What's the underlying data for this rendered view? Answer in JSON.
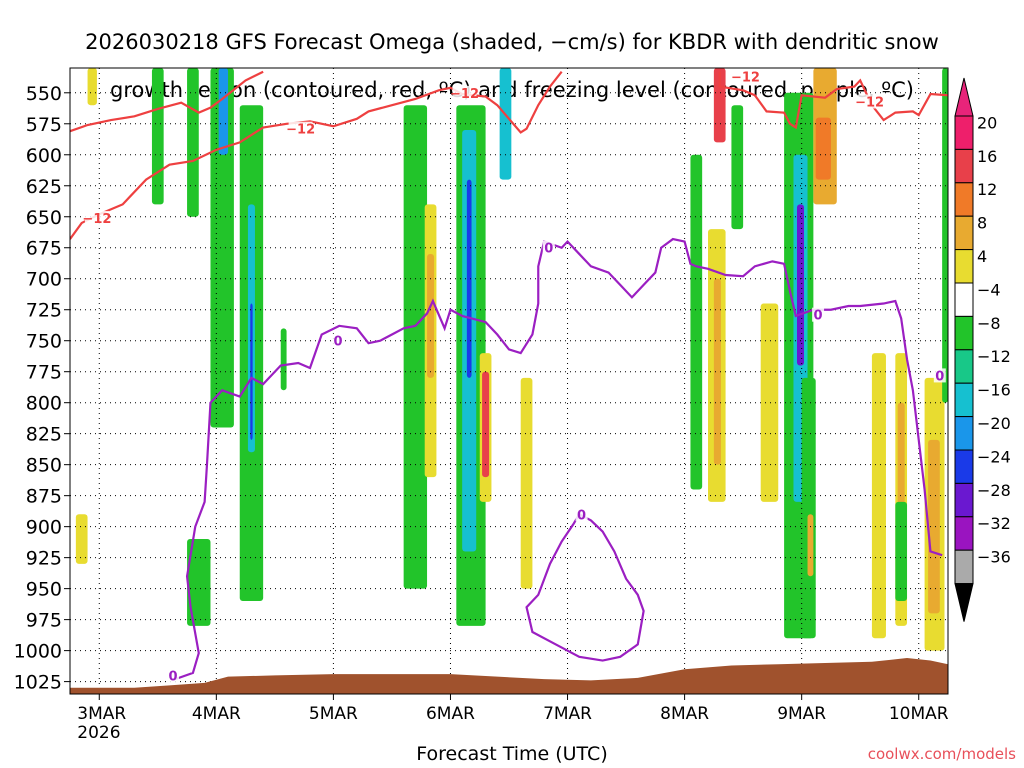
{
  "title_lines": [
    "2026030218 GFS Forecast Omega (shaded, −cm/s) for KBDR with dendritic snow",
    "growth region (contoured, red, ºC) and freezing level (contoured, purple, ºC)"
  ],
  "credit": "coolwx.com/models",
  "chart_data": {
    "type": "heatmap",
    "xlabel": "Forecast Time (UTC)",
    "x_ticks": [
      {
        "label": "3MAR",
        "sub": "2026",
        "day": 0
      },
      {
        "label": "4MAR",
        "day": 1
      },
      {
        "label": "5MAR",
        "day": 2
      },
      {
        "label": "6MAR",
        "day": 3
      },
      {
        "label": "7MAR",
        "day": 4
      },
      {
        "label": "8MAR",
        "day": 5
      },
      {
        "label": "9MAR",
        "day": 6
      },
      {
        "label": "10MAR",
        "day": 7
      }
    ],
    "xlim": [
      -0.25,
      7.25
    ],
    "y_ticks": [
      550,
      575,
      600,
      625,
      650,
      675,
      700,
      725,
      750,
      775,
      800,
      825,
      850,
      875,
      900,
      925,
      950,
      975,
      1000,
      1025
    ],
    "ylim": [
      530,
      1035
    ],
    "y_reversed": true,
    "colorbar": {
      "labels": [
        "20",
        "16",
        "12",
        "8",
        "4",
        "−4",
        "−8",
        "−12",
        "−16",
        "−20",
        "−24",
        "−28",
        "−32",
        "−36"
      ],
      "colors": [
        "#ee1f6b",
        "#e8404a",
        "#f07a28",
        "#e8aa30",
        "#e8dc30",
        "#ffffff",
        "#22c42a",
        "#18c888",
        "#16c0d0",
        "#1a96ea",
        "#1a3ae8",
        "#6a18d0",
        "#9a14c0",
        "#aaaaaa"
      ],
      "arrow_top": "#e8247a",
      "arrow_bottom": "#000000"
    },
    "terrain_color": "#a0522d",
    "terrain": [
      [
        -0.25,
        1030
      ],
      [
        0.3,
        1030
      ],
      [
        0.6,
        1028
      ],
      [
        0.9,
        1026
      ],
      [
        1.1,
        1021
      ],
      [
        1.5,
        1020
      ],
      [
        2.0,
        1019
      ],
      [
        2.5,
        1019
      ],
      [
        3.0,
        1019
      ],
      [
        3.4,
        1021
      ],
      [
        3.8,
        1023
      ],
      [
        4.2,
        1024
      ],
      [
        4.6,
        1022
      ],
      [
        5.0,
        1015
      ],
      [
        5.4,
        1012
      ],
      [
        5.8,
        1011
      ],
      [
        6.2,
        1010
      ],
      [
        6.6,
        1009
      ],
      [
        6.9,
        1006
      ],
      [
        7.1,
        1008
      ],
      [
        7.25,
        1011
      ]
    ],
    "contour_label_dgz": "−12",
    "contour_label_frz": "0",
    "dgz_color": "#ee4040",
    "frz_color": "#9b1fc2",
    "dgz_lines": [
      {
        "points": [
          [
            -0.25,
            581
          ],
          [
            -0.1,
            576
          ],
          [
            0.1,
            572
          ],
          [
            0.3,
            569
          ],
          [
            0.5,
            563
          ],
          [
            0.7,
            558
          ],
          [
            0.85,
            566
          ],
          [
            0.95,
            562
          ],
          [
            1.05,
            555
          ],
          [
            1.25,
            540
          ],
          [
            1.4,
            533
          ]
        ],
        "label_at": null
      },
      {
        "points": [
          [
            -0.25,
            668
          ],
          [
            -0.15,
            655
          ],
          [
            0.0,
            648
          ],
          [
            0.2,
            640
          ],
          [
            0.4,
            620
          ],
          [
            0.6,
            608
          ],
          [
            0.8,
            605
          ],
          [
            1.0,
            596
          ],
          [
            1.2,
            590
          ],
          [
            1.4,
            578
          ],
          [
            1.6,
            575
          ],
          [
            1.8,
            573
          ],
          [
            2.0,
            577
          ],
          [
            2.2,
            571
          ],
          [
            2.3,
            565
          ],
          [
            2.5,
            560
          ],
          [
            2.7,
            555
          ],
          [
            2.9,
            548
          ],
          [
            3.0,
            546
          ],
          [
            3.1,
            551
          ],
          [
            3.3,
            553
          ],
          [
            3.4,
            560
          ],
          [
            3.6,
            582
          ],
          [
            3.65,
            579
          ],
          [
            3.75,
            560
          ],
          [
            3.85,
            545
          ],
          [
            3.95,
            533
          ]
        ],
        "label_at": 2,
        "label_pos": [
          1.4,
          577
        ]
      },
      {
        "points": [
          [
            5.3,
            533
          ],
          [
            5.3,
            545
          ],
          [
            5.5,
            548
          ],
          [
            5.6,
            552
          ],
          [
            5.7,
            565
          ],
          [
            5.85,
            566
          ],
          [
            5.9,
            575
          ],
          [
            5.95,
            578
          ],
          [
            6.0,
            552
          ],
          [
            6.2,
            554
          ],
          [
            6.3,
            547
          ],
          [
            6.45,
            545
          ],
          [
            6.5,
            540
          ],
          [
            6.6,
            560
          ],
          [
            6.7,
            572
          ],
          [
            6.8,
            566
          ],
          [
            6.95,
            565
          ],
          [
            7.0,
            568
          ],
          [
            7.1,
            551
          ],
          [
            7.25,
            552
          ]
        ],
        "label_at": null
      }
    ],
    "dgz_labels": [
      [
        -0.02,
        651
      ],
      [
        1.72,
        579
      ],
      [
        3.12,
        550
      ],
      [
        5.52,
        537
      ],
      [
        6.58,
        557
      ]
    ],
    "frz_lines": [
      {
        "points": [
          [
            0.65,
            1023
          ],
          [
            0.8,
            1018
          ],
          [
            0.85,
            1002
          ],
          [
            0.78,
            965
          ],
          [
            0.75,
            940
          ],
          [
            0.82,
            900
          ],
          [
            0.9,
            880
          ],
          [
            0.92,
            850
          ],
          [
            0.95,
            800
          ],
          [
            1.05,
            790
          ],
          [
            1.2,
            795
          ],
          [
            1.3,
            780
          ],
          [
            1.4,
            785
          ],
          [
            1.55,
            770
          ],
          [
            1.7,
            768
          ],
          [
            1.8,
            772
          ],
          [
            1.9,
            745
          ],
          [
            2.05,
            738
          ],
          [
            2.2,
            740
          ],
          [
            2.3,
            752
          ],
          [
            2.4,
            750
          ],
          [
            2.5,
            745
          ],
          [
            2.6,
            740
          ],
          [
            2.7,
            738
          ],
          [
            2.8,
            728
          ],
          [
            2.85,
            718
          ],
          [
            2.95,
            740
          ],
          [
            3.0,
            725
          ],
          [
            3.1,
            730
          ],
          [
            3.3,
            735
          ],
          [
            3.4,
            745
          ],
          [
            3.5,
            757
          ],
          [
            3.6,
            760
          ],
          [
            3.7,
            745
          ],
          [
            3.75,
            720
          ],
          [
            3.75,
            690
          ],
          [
            3.8,
            670
          ],
          [
            3.95,
            675
          ],
          [
            4.0,
            670
          ],
          [
            4.1,
            680
          ],
          [
            4.2,
            690
          ],
          [
            4.35,
            695
          ],
          [
            4.45,
            705
          ],
          [
            4.55,
            715
          ],
          [
            4.65,
            705
          ],
          [
            4.75,
            695
          ],
          [
            4.8,
            675
          ],
          [
            4.9,
            668
          ],
          [
            5.0,
            670
          ],
          [
            5.05,
            688
          ],
          [
            5.1,
            690
          ],
          [
            5.2,
            692
          ],
          [
            5.35,
            697
          ],
          [
            5.5,
            698
          ],
          [
            5.6,
            690
          ],
          [
            5.75,
            686
          ],
          [
            5.85,
            688
          ],
          [
            5.9,
            710
          ],
          [
            5.95,
            730
          ],
          [
            6.1,
            725
          ],
          [
            6.25,
            725
          ],
          [
            6.4,
            722
          ],
          [
            6.5,
            722
          ],
          [
            6.7,
            720
          ],
          [
            6.8,
            718
          ],
          [
            6.85,
            732
          ],
          [
            6.9,
            765
          ],
          [
            6.95,
            790
          ],
          [
            7.0,
            830
          ],
          [
            7.05,
            870
          ],
          [
            7.1,
            920
          ],
          [
            7.2,
            923
          ]
        ],
        "label_at": null
      }
    ],
    "frz_loop": [
      [
        4.1,
        890
      ],
      [
        4.2,
        895
      ],
      [
        4.3,
        904
      ],
      [
        4.4,
        920
      ],
      [
        4.5,
        942
      ],
      [
        4.6,
        955
      ],
      [
        4.65,
        968
      ],
      [
        4.6,
        995
      ],
      [
        4.45,
        1005
      ],
      [
        4.3,
        1008
      ],
      [
        4.1,
        1005
      ],
      [
        3.9,
        995
      ],
      [
        3.7,
        985
      ],
      [
        3.65,
        965
      ],
      [
        3.75,
        955
      ],
      [
        3.85,
        930
      ],
      [
        3.95,
        912
      ],
      [
        4.05,
        898
      ],
      [
        4.1,
        890
      ]
    ],
    "frz_labels": [
      [
        0.63,
        1020
      ],
      [
        2.04,
        750
      ],
      [
        3.84,
        675
      ],
      [
        4.12,
        890
      ],
      [
        6.14,
        729
      ],
      [
        7.18,
        778
      ]
    ],
    "omega_columns": [
      {
        "x": [
          0.45,
          0.55
        ],
        "y": [
          530,
          640
        ],
        "color": "#22c42a"
      },
      {
        "x": [
          0.75,
          0.85
        ],
        "y": [
          530,
          650
        ],
        "color": "#22c42a"
      },
      {
        "x": [
          0.95,
          1.15
        ],
        "y": [
          530,
          820
        ],
        "color": "#22c42a"
      },
      {
        "x": [
          1.02,
          1.1
        ],
        "y": [
          530,
          600
        ],
        "color": "#1a96ea"
      },
      {
        "x": [
          1.2,
          1.4
        ],
        "y": [
          560,
          960
        ],
        "color": "#22c42a"
      },
      {
        "x": [
          1.27,
          1.33
        ],
        "y": [
          640,
          840
        ],
        "color": "#16c0d0"
      },
      {
        "x": [
          1.29,
          1.31
        ],
        "y": [
          720,
          830
        ],
        "color": "#1a3ae8"
      },
      {
        "x": [
          0.75,
          0.95
        ],
        "y": [
          910,
          980
        ],
        "color": "#22c42a"
      },
      {
        "x": [
          1.55,
          1.6
        ],
        "y": [
          740,
          790
        ],
        "color": "#22c42a"
      },
      {
        "x": [
          2.6,
          2.8
        ],
        "y": [
          560,
          950
        ],
        "color": "#22c42a"
      },
      {
        "x": [
          2.78,
          2.88
        ],
        "y": [
          640,
          860
        ],
        "color": "#e8dc30"
      },
      {
        "x": [
          2.8,
          2.86
        ],
        "y": [
          680,
          780
        ],
        "color": "#e8aa30"
      },
      {
        "x": [
          3.05,
          3.3
        ],
        "y": [
          560,
          980
        ],
        "color": "#22c42a"
      },
      {
        "x": [
          3.1,
          3.22
        ],
        "y": [
          580,
          920
        ],
        "color": "#16c0d0"
      },
      {
        "x": [
          3.14,
          3.18
        ],
        "y": [
          620,
          780
        ],
        "color": "#1a3ae8"
      },
      {
        "x": [
          3.25,
          3.35
        ],
        "y": [
          760,
          880
        ],
        "color": "#e8dc30"
      },
      {
        "x": [
          3.27,
          3.33
        ],
        "y": [
          775,
          860
        ],
        "color": "#e8404a"
      },
      {
        "x": [
          3.42,
          3.52
        ],
        "y": [
          530,
          620
        ],
        "color": "#16c0d0"
      },
      {
        "x": [
          3.6,
          3.7
        ],
        "y": [
          780,
          950
        ],
        "color": "#e8dc30"
      },
      {
        "x": [
          5.05,
          5.15
        ],
        "y": [
          600,
          870
        ],
        "color": "#22c42a"
      },
      {
        "x": [
          5.2,
          5.35
        ],
        "y": [
          660,
          880
        ],
        "color": "#e8dc30"
      },
      {
        "x": [
          5.25,
          5.31
        ],
        "y": [
          700,
          850
        ],
        "color": "#e8aa30"
      },
      {
        "x": [
          5.25,
          5.35
        ],
        "y": [
          530,
          590
        ],
        "color": "#e8404a"
      },
      {
        "x": [
          5.4,
          5.5
        ],
        "y": [
          560,
          660
        ],
        "color": "#22c42a"
      },
      {
        "x": [
          5.65,
          5.8
        ],
        "y": [
          720,
          880
        ],
        "color": "#e8dc30"
      },
      {
        "x": [
          5.85,
          6.1
        ],
        "y": [
          550,
          990
        ],
        "color": "#22c42a"
      },
      {
        "x": [
          5.93,
          6.05
        ],
        "y": [
          600,
          880
        ],
        "color": "#16c0d0"
      },
      {
        "x": [
          5.96,
          6.02
        ],
        "y": [
          640,
          770
        ],
        "color": "#6a18d0"
      },
      {
        "x": [
          6.1,
          6.3
        ],
        "y": [
          530,
          640
        ],
        "color": "#e8aa30"
      },
      {
        "x": [
          6.12,
          6.25
        ],
        "y": [
          570,
          620
        ],
        "color": "#f07a28"
      },
      {
        "x": [
          6.0,
          6.12
        ],
        "y": [
          780,
          990
        ],
        "color": "#22c42a"
      },
      {
        "x": [
          6.05,
          6.1
        ],
        "y": [
          890,
          940
        ],
        "color": "#e8aa30"
      },
      {
        "x": [
          6.6,
          6.72
        ],
        "y": [
          760,
          990
        ],
        "color": "#e8dc30"
      },
      {
        "x": [
          6.8,
          6.9
        ],
        "y": [
          760,
          980
        ],
        "color": "#e8dc30"
      },
      {
        "x": [
          6.82,
          6.88
        ],
        "y": [
          800,
          900
        ],
        "color": "#e8aa30"
      },
      {
        "x": [
          6.8,
          6.9
        ],
        "y": [
          880,
          960
        ],
        "color": "#22c42a"
      },
      {
        "x": [
          7.05,
          7.22
        ],
        "y": [
          780,
          1000
        ],
        "color": "#e8dc30"
      },
      {
        "x": [
          7.08,
          7.18
        ],
        "y": [
          830,
          970
        ],
        "color": "#e8aa30"
      },
      {
        "x": [
          7.2,
          7.25
        ],
        "y": [
          530,
          800
        ],
        "color": "#22c42a"
      },
      {
        "x": [
          -0.2,
          -0.1
        ],
        "y": [
          890,
          930
        ],
        "color": "#e8dc30"
      },
      {
        "x": [
          -0.1,
          -0.02
        ],
        "y": [
          530,
          560
        ],
        "color": "#e8dc30"
      }
    ]
  }
}
